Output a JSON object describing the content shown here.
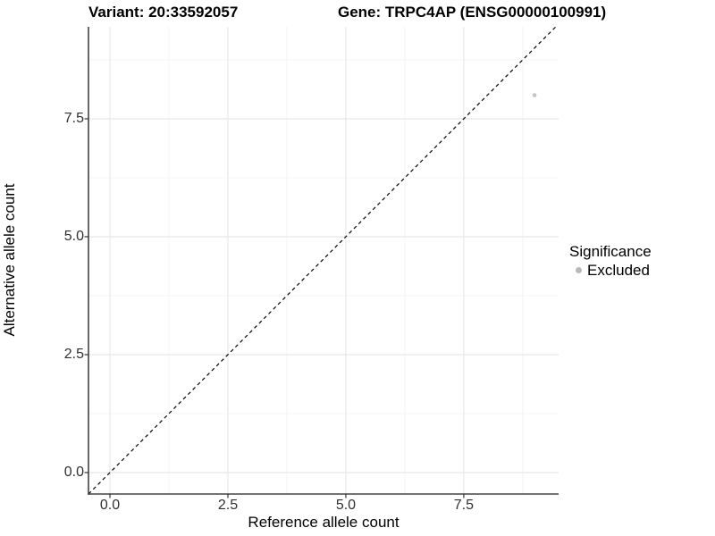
{
  "header": {
    "variant_title": "Variant: 20:33592057",
    "gene_title": "Gene: TRPC4AP (ENSG00000100991)"
  },
  "chart_data": {
    "type": "scatter",
    "xlabel": "Reference allele count",
    "ylabel": "Alternative allele count",
    "xlim": [
      -0.455,
      9.51
    ],
    "ylim": [
      -0.455,
      9.45
    ],
    "x_ticks": [
      0,
      2.5,
      5,
      7.5
    ],
    "x_tick_labels": [
      "0.0",
      "2.5",
      "5.0",
      "7.5"
    ],
    "y_ticks": [
      0,
      2.5,
      5,
      7.5
    ],
    "y_tick_labels": [
      "0.0",
      "2.5",
      "5.0",
      "7.5"
    ],
    "minor_ticks": [
      1.25,
      3.75,
      6.25,
      8.75
    ],
    "grid": "major and minor gridlines, light gray on white",
    "identity_line": {
      "style": "dashed",
      "slope": 1,
      "intercept": 0,
      "color": "#000000"
    },
    "points": [
      {
        "x": 9,
        "y": 8,
        "significance": "Excluded"
      }
    ],
    "legend": {
      "title": "Significance",
      "position": "right",
      "items": [
        {
          "label": "Excluded",
          "color": "#b9b9b9"
        }
      ]
    },
    "colors": {
      "point_excluded": "#c4c4c4",
      "grid_major": "#e8e8e8",
      "grid_minor": "#f4f4f4",
      "axis_line": "#434343",
      "tick_mark": "#333333",
      "tick_text": "#303030",
      "title_text": "#000000"
    }
  }
}
